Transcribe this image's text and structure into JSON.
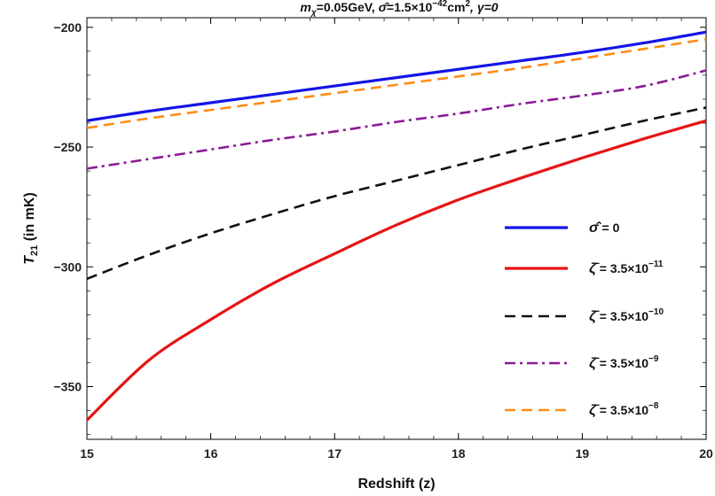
{
  "chart_data": {
    "type": "line",
    "title": "m_χ=0.05GeV, σ̂=1.5×10⁻⁴²cm², γ=0",
    "title_parts": {
      "mass_symbol": "m",
      "mass_sub": "χ",
      "mass_value": "=0.05GeV, ",
      "sigma_symbol": "σ̂",
      "sigma_value": "=1.5×10",
      "sigma_exp": "−42",
      "sigma_unit": "cm",
      "sigma_unit_exp": "2",
      "gamma_text": ", γ=0"
    },
    "xlabel": "Redshift (z)",
    "ylabel_main": "T",
    "ylabel_sub": "21",
    "ylabel_rest": " (in mK)",
    "xlim": [
      15,
      20
    ],
    "ylim": [
      -372,
      -196
    ],
    "xticks": [
      15,
      16,
      17,
      18,
      19,
      20
    ],
    "yticks": [
      -350,
      -300,
      -250,
      -200
    ],
    "grid": false,
    "legend_position": "lower-right",
    "series": [
      {
        "name": "σ̂ = 0",
        "label_parts": {
          "sym": "σ̂",
          "val": " = 0",
          "exp": ""
        },
        "color": "#1414e6",
        "style": "solid",
        "x": [
          15,
          15.5,
          16,
          16.5,
          17,
          17.5,
          18,
          18.5,
          19,
          19.5,
          20
        ],
        "y": [
          -239,
          -235,
          -231.5,
          -228,
          -224.5,
          -221,
          -217.5,
          -214,
          -210.5,
          -206.5,
          -202
        ]
      },
      {
        "name": "ζ̄ = 3.5×10⁻¹¹",
        "label_parts": {
          "sym": "ζ̄",
          "val": " = 3.5×10",
          "exp": "−11"
        },
        "color": "#e61414",
        "style": "solid",
        "x": [
          15,
          15.5,
          16,
          16.5,
          17,
          17.5,
          18,
          18.5,
          19,
          19.5,
          20
        ],
        "y": [
          -364,
          -339,
          -322,
          -307,
          -294.5,
          -282.5,
          -272,
          -263,
          -254.5,
          -246.5,
          -239
        ]
      },
      {
        "name": "ζ̄ = 3.5×10⁻¹⁰",
        "label_parts": {
          "sym": "ζ̄",
          "val": " = 3.5×10",
          "exp": "−10"
        },
        "color": "#111111",
        "style": "dashed",
        "x": [
          15,
          15.5,
          16,
          16.5,
          17,
          17.5,
          18,
          18.5,
          19,
          19.5,
          20
        ],
        "y": [
          -305,
          -295,
          -286,
          -278,
          -270.5,
          -264,
          -257.5,
          -251,
          -245,
          -239,
          -233.5
        ]
      },
      {
        "name": "ζ̄ = 3.5×10⁻⁹",
        "label_parts": {
          "sym": "ζ̄",
          "val": " = 3.5×10",
          "exp": "−9"
        },
        "color": "#8a1a96",
        "style": "dashdot",
        "x": [
          15,
          15.5,
          16,
          16.5,
          17,
          17.5,
          18,
          18.5,
          19,
          19.5,
          20
        ],
        "y": [
          -259,
          -255,
          -251,
          -247,
          -243.5,
          -239.5,
          -236,
          -232,
          -228.5,
          -224.5,
          -218
        ]
      },
      {
        "name": "ζ̄ = 3.5×10⁻⁸",
        "label_parts": {
          "sym": "ζ̄",
          "val": " = 3.5×10",
          "exp": "−8"
        },
        "color": "#ff8c14",
        "style": "dashed",
        "x": [
          15,
          15.5,
          16,
          16.5,
          17,
          17.5,
          18,
          18.5,
          19,
          19.5,
          20
        ],
        "y": [
          -242,
          -238,
          -234.5,
          -231,
          -227.5,
          -224,
          -220.5,
          -217,
          -213,
          -209,
          -205
        ]
      }
    ]
  }
}
